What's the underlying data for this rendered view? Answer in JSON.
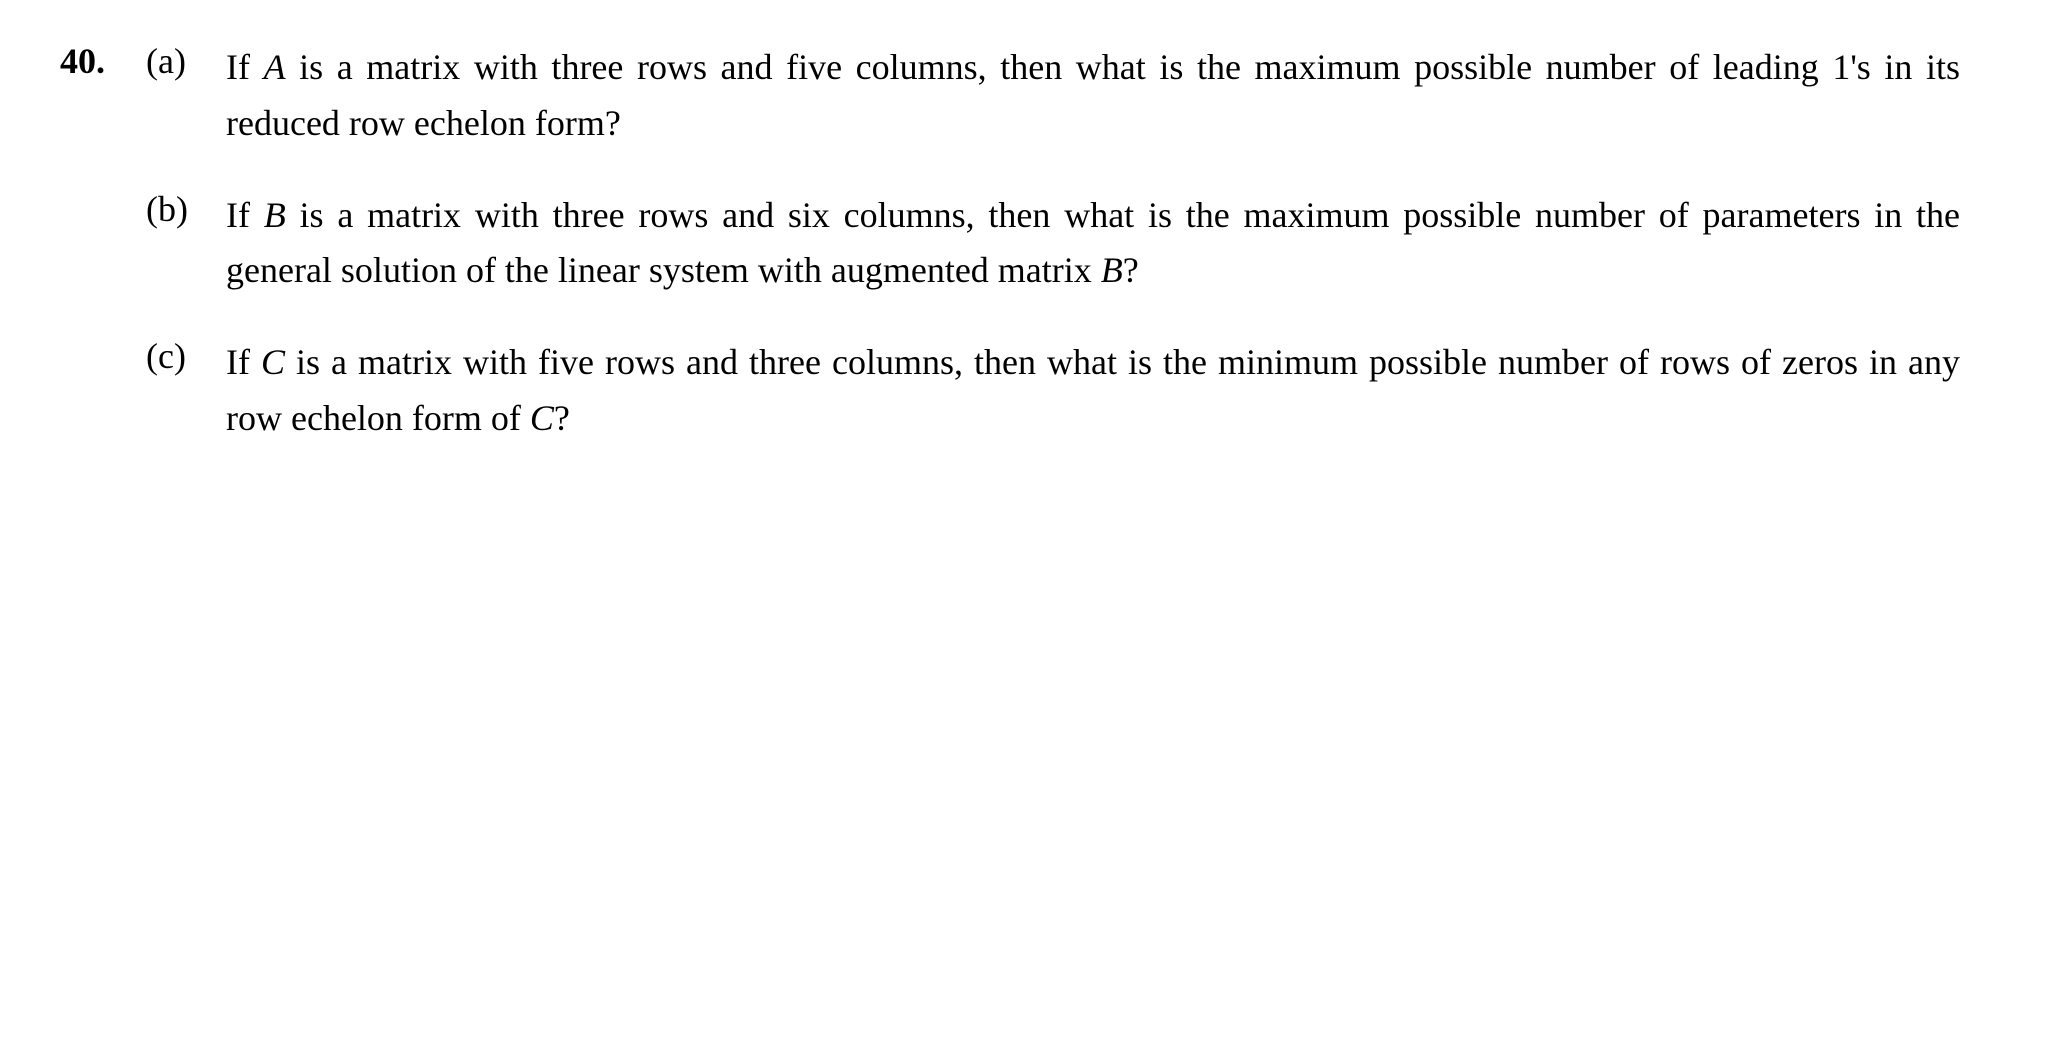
{
  "problem": {
    "number": "40.",
    "parts": [
      {
        "label": "(a)",
        "prefix": "If ",
        "variable": "A",
        "suffix": " is a matrix with three rows and five columns, then what is the maximum possible number of leading 1's in its reduced row echelon form?"
      },
      {
        "label": "(b)",
        "prefix": "If ",
        "variable": "B",
        "middle": " is a matrix with three rows and six columns, then what is the maximum possible number of parameters in the general solution of the linear system with augmented matrix ",
        "variable2": "B",
        "suffix": "?"
      },
      {
        "label": "(c)",
        "prefix": "If ",
        "variable": "C",
        "middle": " is a matrix with five rows and three columns, then what is the minimum possible number of rows of zeros in any row echelon form of ",
        "variable2": "C",
        "suffix": "?"
      }
    ]
  },
  "styling": {
    "background_color": "#ffffff",
    "text_color": "#000000",
    "font_family": "Georgia, Times New Roman, serif",
    "base_fontsize": 36,
    "line_height": 1.55,
    "problem_number_weight": "bold",
    "text_align": "justify"
  }
}
